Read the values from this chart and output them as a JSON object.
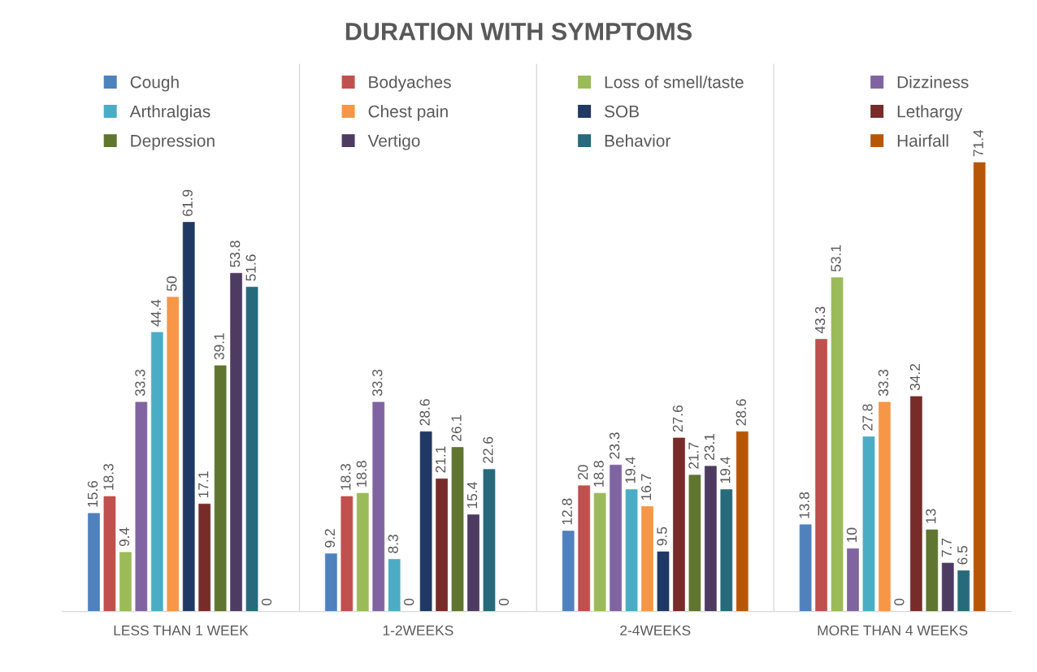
{
  "chart_data": {
    "type": "bar",
    "title": "DURATION WITH SYMPTOMS",
    "categories": [
      "LESS THAN 1 WEEK",
      "1-2WEEKS",
      "2-4WEEKS",
      "MORE THAN 4 WEEKS"
    ],
    "series": [
      {
        "name": "Cough",
        "color": "#4f81bd",
        "values": [
          15.6,
          9.2,
          12.8,
          13.8
        ]
      },
      {
        "name": "Bodyaches",
        "color": "#c0504d",
        "values": [
          18.3,
          18.3,
          20,
          43.3
        ]
      },
      {
        "name": "Loss of smell/taste",
        "color": "#9bbb59",
        "values": [
          9.4,
          18.8,
          18.8,
          53.1
        ]
      },
      {
        "name": "Dizziness",
        "color": "#8064a2",
        "values": [
          33.3,
          33.3,
          23.3,
          10
        ]
      },
      {
        "name": "Arthralgias",
        "color": "#4bacc6",
        "values": [
          44.4,
          8.3,
          19.4,
          27.8
        ]
      },
      {
        "name": "Chest pain",
        "color": "#f79646",
        "values": [
          50,
          0,
          16.7,
          33.3
        ]
      },
      {
        "name": "SOB",
        "color": "#1f3864",
        "values": [
          61.9,
          28.6,
          9.5,
          0
        ]
      },
      {
        "name": "Lethargy",
        "color": "#772c2a",
        "values": [
          17.1,
          21.1,
          27.6,
          34.2
        ]
      },
      {
        "name": "Depression",
        "color": "#5f7530",
        "values": [
          39.1,
          26.1,
          21.7,
          13
        ]
      },
      {
        "name": "Vertigo",
        "color": "#4d3b62",
        "values": [
          53.8,
          15.4,
          23.1,
          7.7
        ]
      },
      {
        "name": "Behavior",
        "color": "#276a7c",
        "values": [
          51.6,
          22.6,
          19.4,
          6.5
        ]
      },
      {
        "name": "Hairfall",
        "color": "#b65708",
        "values": [
          0,
          0,
          28.6,
          71.4
        ]
      }
    ],
    "data_labels": true,
    "grid": "x",
    "legend": "top"
  }
}
